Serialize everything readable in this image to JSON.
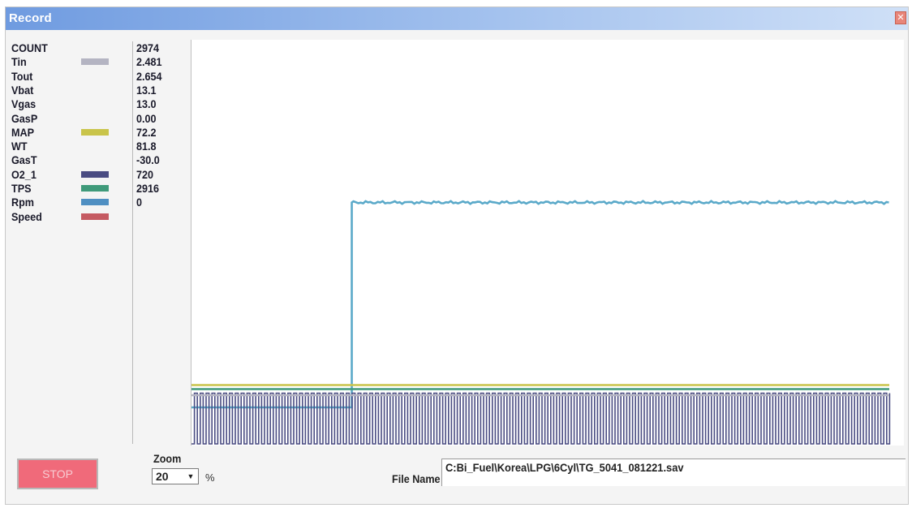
{
  "window": {
    "title": "Record",
    "close_glyph": "✕"
  },
  "channels": [
    {
      "label": "COUNT",
      "value": "2974",
      "color": null
    },
    {
      "label": "Tin",
      "value": "2.481",
      "color": "#b4b4c2"
    },
    {
      "label": "Tout",
      "value": "2.654",
      "color": null
    },
    {
      "label": "Vbat",
      "value": "13.1",
      "color": null
    },
    {
      "label": "Vgas",
      "value": "13.0",
      "color": null
    },
    {
      "label": "GasP",
      "value": "0.00",
      "color": null
    },
    {
      "label": "MAP",
      "value": "72.2",
      "color": "#c9c44a"
    },
    {
      "label": "WT",
      "value": "81.8",
      "color": null
    },
    {
      "label": "GasT",
      "value": "-30.0",
      "color": null
    },
    {
      "label": "O2_1",
      "value": "720",
      "color": "#4a4c82"
    },
    {
      "label": "TPS",
      "value": "2916",
      "color": "#3f9a7a"
    },
    {
      "label": "Rpm",
      "value": "0",
      "color": "#4f8fc2"
    },
    {
      "label": "Speed",
      "value": "",
      "color": "#c55a62"
    }
  ],
  "chart_data": {
    "type": "line",
    "grid": false,
    "series": [
      {
        "color": "#5aa9c9",
        "shape": "step",
        "low_level": 0.09,
        "high_level": 0.595,
        "step_at": 0.225
      },
      {
        "color": "#c9c44a",
        "shape": "flat",
        "level": 0.145
      },
      {
        "color": "#3f9a7a",
        "shape": "flat",
        "level": 0.135
      },
      {
        "color": "#4a4c82",
        "shape": "square-wave",
        "low_level": 0.0,
        "high_level": 0.125
      },
      {
        "color": "#b4b4c2",
        "shape": "flat",
        "level": 0.12
      }
    ]
  },
  "controls": {
    "stop_label": "STOP",
    "zoom_label": "Zoom",
    "zoom_value": "20",
    "zoom_arrow": "▼",
    "percent": "%",
    "file_name_label": "File Name",
    "file_name_value": "C:Bi_Fuel\\Korea\\LPG\\6Cyl\\TG_5041_081221.sav"
  }
}
